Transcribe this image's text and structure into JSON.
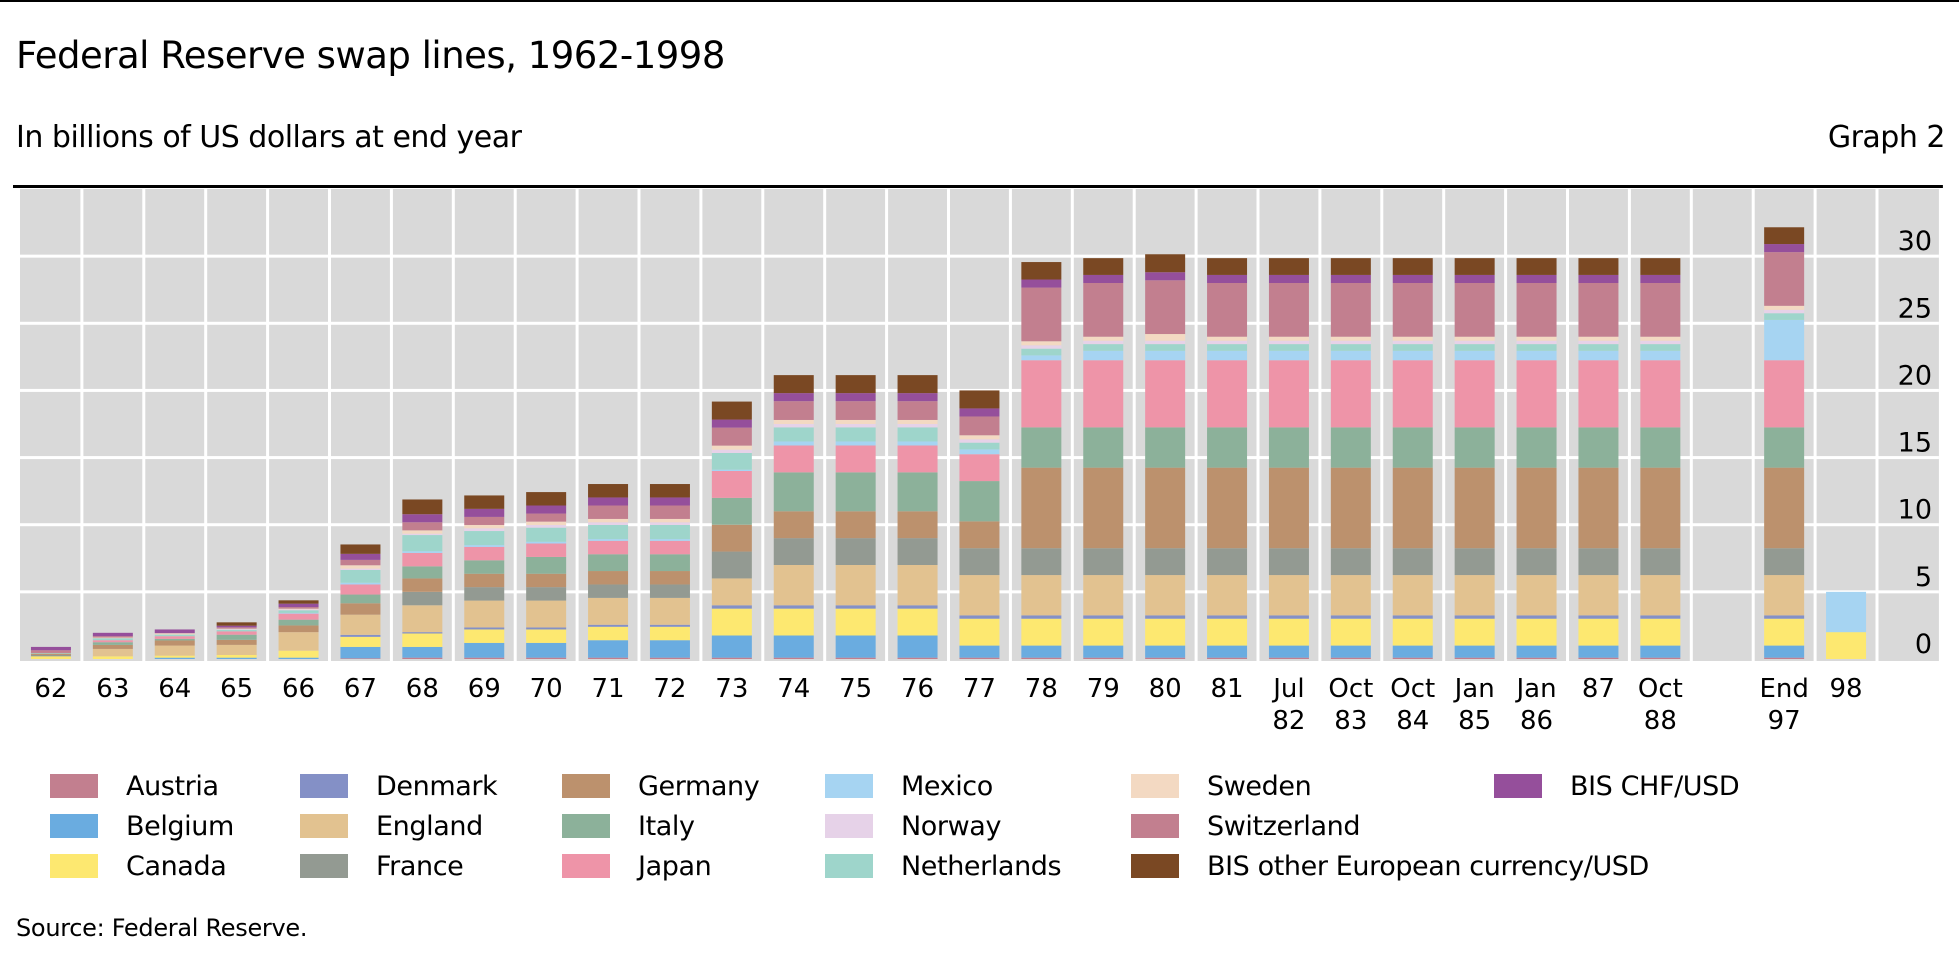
{
  "title": "Federal Reserve swap lines, 1962-1998",
  "subtitle": "In billions of US dollars at end year",
  "graph_number": "Graph 2",
  "source": "Source: Federal Reserve.",
  "chart_data": {
    "type": "bar",
    "stacked": true,
    "title": "Federal Reserve swap lines, 1962-1998",
    "ylabel": "In billions of US dollars at end year",
    "ylim": [
      0,
      35
    ],
    "yticks": [
      0,
      5,
      10,
      15,
      20,
      25,
      30
    ],
    "grid": true,
    "legend_position": "bottom",
    "categories": [
      "62",
      "63",
      "64",
      "65",
      "66",
      "67",
      "68",
      "69",
      "70",
      "71",
      "72",
      "73",
      "74",
      "75",
      "76",
      "77",
      "78",
      "79",
      "80",
      "81",
      "Jul\n82",
      "Oct\n83",
      "Oct\n84",
      "Jan\n85",
      "Jan\n86",
      "87",
      "Oct\n88",
      "End\n97",
      "98"
    ],
    "series": [
      {
        "name": "Austria",
        "color": "#c27f8f",
        "values": [
          0,
          0,
          0,
          0,
          0,
          0.05,
          0.1,
          0.1,
          0.1,
          0.1,
          0.1,
          0.1,
          0.1,
          0.1,
          0.1,
          0.1,
          0.1,
          0.1,
          0.1,
          0.1,
          0.1,
          0.1,
          0.1,
          0.1,
          0.1,
          0.1,
          0.1,
          0.1,
          0
        ]
      },
      {
        "name": "Belgium",
        "color": "#6aace0",
        "values": [
          0,
          0,
          0.1,
          0.1,
          0.1,
          0.85,
          0.8,
          1.1,
          1.1,
          1.3,
          1.3,
          1.65,
          1.65,
          1.65,
          1.65,
          0.9,
          0.9,
          0.9,
          0.9,
          0.9,
          0.9,
          0.9,
          0.9,
          0.9,
          0.9,
          0.9,
          0.9,
          0.9,
          0
        ]
      },
      {
        "name": "Canada",
        "color": "#fde870",
        "values": [
          0.2,
          0.2,
          0.15,
          0.2,
          0.52,
          0.75,
          1,
          1,
          1,
          1,
          1,
          2,
          2,
          2,
          2,
          2,
          2,
          2,
          2,
          2,
          2,
          2,
          2,
          2,
          2,
          2,
          2,
          2,
          2
        ]
      },
      {
        "name": "Denmark",
        "color": "#8490c6",
        "values": [
          0,
          0,
          0,
          0,
          0,
          0.15,
          0.1,
          0.15,
          0.15,
          0.15,
          0.15,
          0.25,
          0.25,
          0.25,
          0.25,
          0.25,
          0.25,
          0.25,
          0.25,
          0.25,
          0.25,
          0.25,
          0.25,
          0.25,
          0.25,
          0.25,
          0.25,
          0.25,
          0
        ]
      },
      {
        "name": "England",
        "color": "#e2c290",
        "values": [
          0,
          0.55,
          0.75,
          0.75,
          1.38,
          1.5,
          2,
          2,
          2,
          2,
          2,
          2,
          3,
          3,
          3,
          3,
          3,
          3,
          3,
          3,
          3,
          3,
          3,
          3,
          3,
          3,
          3,
          3,
          0
        ]
      },
      {
        "name": "France",
        "color": "#939a92",
        "values": [
          0.1,
          0,
          0,
          0,
          0,
          0,
          1,
          1,
          1,
          1,
          1,
          2,
          2,
          2,
          2,
          2,
          2,
          2,
          2,
          2,
          2,
          2,
          2,
          2,
          2,
          2,
          2,
          2,
          0
        ]
      },
      {
        "name": "Germany",
        "color": "#bc916d",
        "values": [
          0.1,
          0.3,
          0.38,
          0.38,
          0.5,
          0.85,
          1,
          1,
          1,
          1,
          1,
          2,
          2,
          2,
          2,
          2,
          6,
          6,
          6,
          6,
          6,
          6,
          6,
          6,
          6,
          6,
          6,
          6,
          0
        ]
      },
      {
        "name": "Italy",
        "color": "#8cb19a",
        "values": [
          0,
          0.2,
          0.12,
          0.38,
          0.43,
          0.65,
          0.9,
          1,
          1.25,
          1.25,
          1.25,
          2,
          2.9,
          2.9,
          2.9,
          3,
          3,
          3,
          3,
          3,
          3,
          3,
          3,
          3,
          3,
          3,
          3,
          3,
          0
        ]
      },
      {
        "name": "Japan",
        "color": "#ee94a8",
        "values": [
          0,
          0.15,
          0.2,
          0.25,
          0.45,
          0.75,
          1,
          1,
          1,
          1,
          1,
          2,
          2,
          2,
          2,
          2,
          5,
          5,
          5,
          5,
          5,
          5,
          5,
          5,
          5,
          5,
          5,
          5,
          0
        ]
      },
      {
        "name": "Mexico",
        "color": "#a6d4f2",
        "values": [
          0,
          0,
          0,
          0,
          0.05,
          0.13,
          0.13,
          0.13,
          0.13,
          0.13,
          0.13,
          0.1,
          0.3,
          0.3,
          0.3,
          0.36,
          0.36,
          0.7,
          0.7,
          0.7,
          0.7,
          0.7,
          0.7,
          0.7,
          0.7,
          0.7,
          0.7,
          3,
          3
        ]
      },
      {
        "name": "Netherlands",
        "color": "#9ed5cb",
        "values": [
          0.05,
          0.15,
          0.12,
          0.12,
          0.2,
          0.95,
          1.2,
          1.05,
          1.05,
          1.05,
          1.05,
          1.24,
          1.05,
          1.05,
          1.05,
          0.5,
          0.5,
          0.5,
          0.5,
          0.5,
          0.5,
          0.5,
          0.5,
          0.5,
          0.5,
          0.5,
          0.5,
          0.5,
          0
        ]
      },
      {
        "name": "Norway",
        "color": "#e6d2e8",
        "values": [
          0,
          0,
          0,
          0.04,
          0.06,
          0.1,
          0.1,
          0.2,
          0.2,
          0.2,
          0.2,
          0.25,
          0.25,
          0.25,
          0.25,
          0.25,
          0.25,
          0.25,
          0.25,
          0.25,
          0.25,
          0.25,
          0.25,
          0.25,
          0.25,
          0.25,
          0.25,
          0.25,
          0
        ]
      },
      {
        "name": "Sweden",
        "color": "#f3d9c2",
        "values": [
          0,
          0.05,
          0.1,
          0.04,
          0.06,
          0.25,
          0.25,
          0.25,
          0.25,
          0.25,
          0.25,
          0.3,
          0.3,
          0.3,
          0.3,
          0.3,
          0.3,
          0.3,
          0.5,
          0.3,
          0.3,
          0.3,
          0.3,
          0.3,
          0.3,
          0.3,
          0.3,
          0.3,
          0
        ]
      },
      {
        "name": "Switzerland",
        "color": "#c27f8f",
        "values": [
          0.2,
          0.1,
          0,
          0.1,
          0.12,
          0.4,
          0.6,
          0.6,
          0.6,
          1,
          1,
          1.34,
          1.4,
          1.4,
          1.4,
          1.4,
          4,
          4,
          4,
          4,
          4,
          4,
          4,
          4,
          4,
          4,
          4,
          4,
          0
        ]
      },
      {
        "name": "BIS CHF/USD",
        "color": "#954f9b",
        "values": [
          0.25,
          0.25,
          0.28,
          0.12,
          0.25,
          0.45,
          0.6,
          0.6,
          0.6,
          0.6,
          0.6,
          0.6,
          0.6,
          0.6,
          0.6,
          0.6,
          0.6,
          0.6,
          0.6,
          0.6,
          0.6,
          0.6,
          0.6,
          0.6,
          0.6,
          0.6,
          0.6,
          0.6,
          0
        ]
      },
      {
        "name": "BIS other European currency/USD",
        "color": "#7a4823",
        "values": [
          0,
          0,
          0,
          0.25,
          0.25,
          0.7,
          1.1,
          1,
          1,
          1,
          1,
          1.34,
          1.34,
          1.34,
          1.34,
          1.34,
          1.3,
          1.25,
          1.34,
          1.25,
          1.25,
          1.25,
          1.25,
          1.25,
          1.25,
          1.25,
          1.25,
          1.25,
          0
        ]
      }
    ]
  },
  "colors": {
    "plot_background": "#d9d9d9",
    "gridline": "#ffffff",
    "rule": "#000000"
  }
}
